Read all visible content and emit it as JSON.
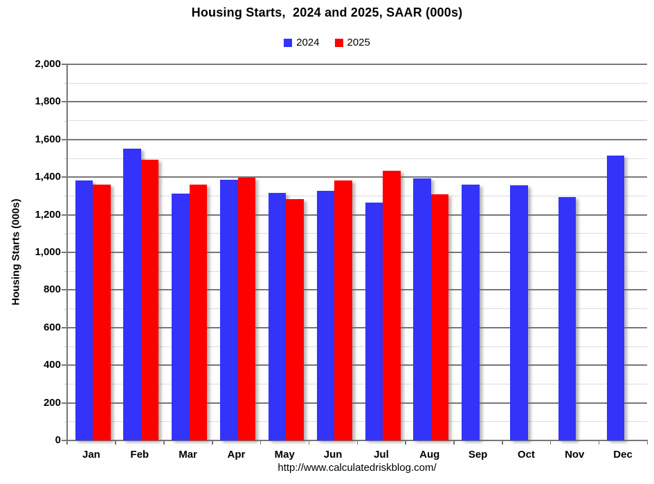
{
  "title": "Housing Starts,  2024 and 2025, SAAR (000s)",
  "y_axis_title": "Housing Starts (000s)",
  "footer_url": "http://www.calculatedriskblog.com/",
  "legend": [
    {
      "label": "2024",
      "color": "#3333FA"
    },
    {
      "label": "2025",
      "color": "#FD0000"
    }
  ],
  "colors": {
    "bar_2024": "#3333FA",
    "bar_2025": "#FD0000",
    "grid_major": "#767676",
    "grid_minor": "#dcdcdc",
    "text": "#000000",
    "background": "#ffffff"
  },
  "chart_data": {
    "type": "bar",
    "title": "Housing Starts,  2024 and 2025, SAAR (000s)",
    "xlabel": "",
    "ylabel": "Housing Starts (000s)",
    "categories": [
      "Jan",
      "Feb",
      "Mar",
      "Apr",
      "May",
      "Jun",
      "Jul",
      "Aug",
      "Sep",
      "Oct",
      "Nov",
      "Dec"
    ],
    "series": [
      {
        "name": "2024",
        "color": "#3333FA",
        "values": [
          1383,
          1551,
          1313,
          1387,
          1317,
          1329,
          1264,
          1392,
          1359,
          1355,
          1295,
          1516
        ]
      },
      {
        "name": "2025",
        "color": "#FD0000",
        "values": [
          1359,
          1491,
          1360,
          1398,
          1283,
          1381,
          1432,
          1310,
          null,
          null,
          null,
          null
        ]
      }
    ],
    "ylim": [
      0,
      2000
    ],
    "y_major_step": 200,
    "y_minor_step": 100,
    "y_tick_labels": [
      "0",
      "200",
      "400",
      "600",
      "800",
      "1,000",
      "1,200",
      "1,400",
      "1,600",
      "1,800",
      "2,000"
    ],
    "grid": true,
    "legend_position": "top"
  }
}
